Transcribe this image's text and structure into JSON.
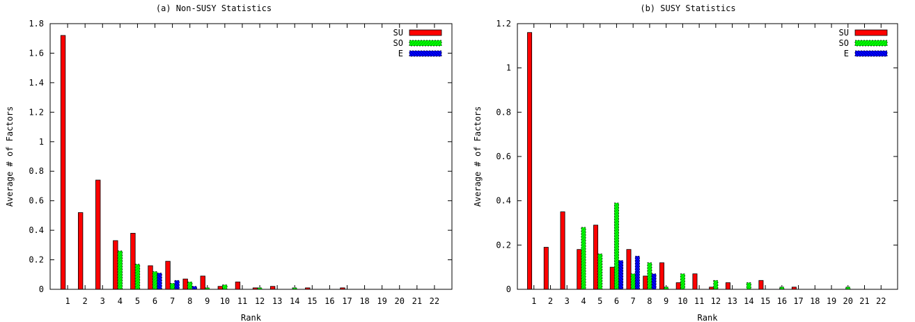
{
  "chart_data": [
    {
      "type": "bar",
      "title": "(a) Non-SUSY Statistics",
      "xlabel": "Rank",
      "ylabel": "Average # of Factors",
      "ylim": [
        0,
        1.8
      ],
      "yticks": [
        "0",
        "0.2",
        "0.4",
        "0.6",
        "0.8",
        "1",
        "1.2",
        "1.4",
        "1.6",
        "1.8"
      ],
      "ytick_values": [
        0,
        0.2,
        0.4,
        0.6,
        0.8,
        1,
        1.2,
        1.4,
        1.6,
        1.8
      ],
      "categories": [
        "1",
        "2",
        "3",
        "4",
        "5",
        "6",
        "7",
        "8",
        "9",
        "10",
        "11",
        "12",
        "13",
        "14",
        "15",
        "16",
        "17",
        "18",
        "19",
        "20",
        "21",
        "22"
      ],
      "legend_position": "top-right",
      "grid": false,
      "series": [
        {
          "name": "SU",
          "color": "#ff0000",
          "values": [
            1.72,
            0.52,
            0.74,
            0.33,
            0.38,
            0.16,
            0.19,
            0.07,
            0.09,
            0.02,
            0.05,
            0.01,
            0.02,
            0,
            0.01,
            0,
            0.01,
            0,
            0,
            0,
            0,
            0
          ]
        },
        {
          "name": "SO",
          "color": "#00ff00",
          "values": [
            0,
            0,
            0,
            0.26,
            0.17,
            0.12,
            0.04,
            0.05,
            0.01,
            0.03,
            0,
            0.01,
            0,
            0.01,
            0,
            0,
            0,
            0,
            0,
            0,
            0,
            0
          ]
        },
        {
          "name": "E",
          "color": "#0000ff",
          "values": [
            0,
            0,
            0,
            0,
            0,
            0.11,
            0.06,
            0.02,
            0,
            0,
            0,
            0,
            0,
            0,
            0,
            0,
            0,
            0,
            0,
            0,
            0,
            0
          ]
        }
      ]
    },
    {
      "type": "bar",
      "title": "(b) SUSY Statistics",
      "xlabel": "Rank",
      "ylabel": "Average # of Factors",
      "ylim": [
        0,
        1.2
      ],
      "yticks": [
        "0",
        "0.2",
        "0.4",
        "0.6",
        "0.8",
        "1",
        "1.2"
      ],
      "ytick_values": [
        0,
        0.2,
        0.4,
        0.6,
        0.8,
        1,
        1.2
      ],
      "categories": [
        "1",
        "2",
        "3",
        "4",
        "5",
        "6",
        "7",
        "8",
        "9",
        "10",
        "11",
        "12",
        "13",
        "14",
        "15",
        "16",
        "17",
        "18",
        "19",
        "20",
        "21",
        "22"
      ],
      "legend_position": "top-right",
      "grid": false,
      "series": [
        {
          "name": "SU",
          "color": "#ff0000",
          "values": [
            1.16,
            0.19,
            0.35,
            0.18,
            0.29,
            0.1,
            0.18,
            0.06,
            0.12,
            0.03,
            0.07,
            0.01,
            0.03,
            0,
            0.04,
            0,
            0.01,
            0,
            0,
            0,
            0,
            0
          ]
        },
        {
          "name": "SO",
          "color": "#00ff00",
          "values": [
            0,
            0,
            0,
            0.28,
            0.16,
            0.39,
            0.07,
            0.12,
            0.01,
            0.07,
            0,
            0.04,
            0,
            0.03,
            0,
            0.01,
            0,
            0,
            0,
            0.01,
            0,
            0
          ]
        },
        {
          "name": "E",
          "color": "#0000ff",
          "values": [
            0,
            0,
            0,
            0,
            0,
            0.13,
            0.15,
            0.07,
            0,
            0,
            0,
            0,
            0,
            0,
            0,
            0,
            0,
            0,
            0,
            0,
            0,
            0
          ]
        }
      ]
    }
  ]
}
